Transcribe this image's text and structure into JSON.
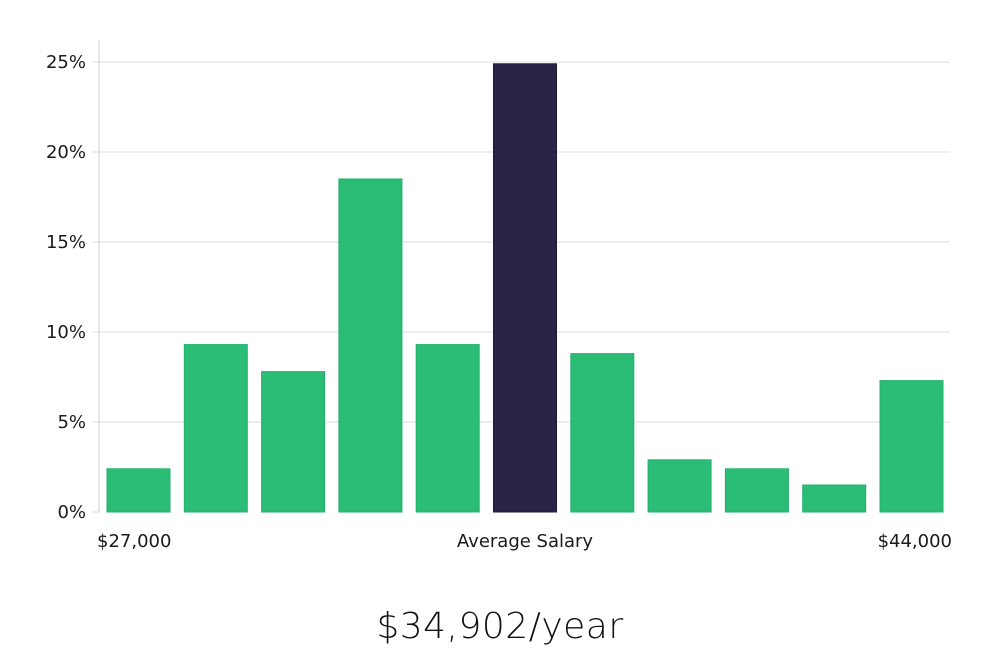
{
  "chart_data": {
    "type": "bar",
    "values": [
      2.4,
      9.3,
      7.8,
      18.5,
      9.3,
      24.9,
      8.8,
      2.9,
      2.4,
      1.5,
      7.3
    ],
    "highlight_index": 5,
    "ylim": [
      0,
      25
    ],
    "yticks": [
      0,
      5,
      10,
      15,
      20,
      25
    ],
    "ytick_labels": [
      "0%",
      "5%",
      "10%",
      "15%",
      "20%",
      "25%"
    ],
    "x_range_labels": {
      "min": "$27,000",
      "middle": "Average Salary",
      "max": "$44,000"
    },
    "colors": {
      "bar": "#2bbd76",
      "highlight": "#272445",
      "grid": "#dcdcdc"
    }
  },
  "summary": {
    "average_salary": "$34,902/year"
  }
}
